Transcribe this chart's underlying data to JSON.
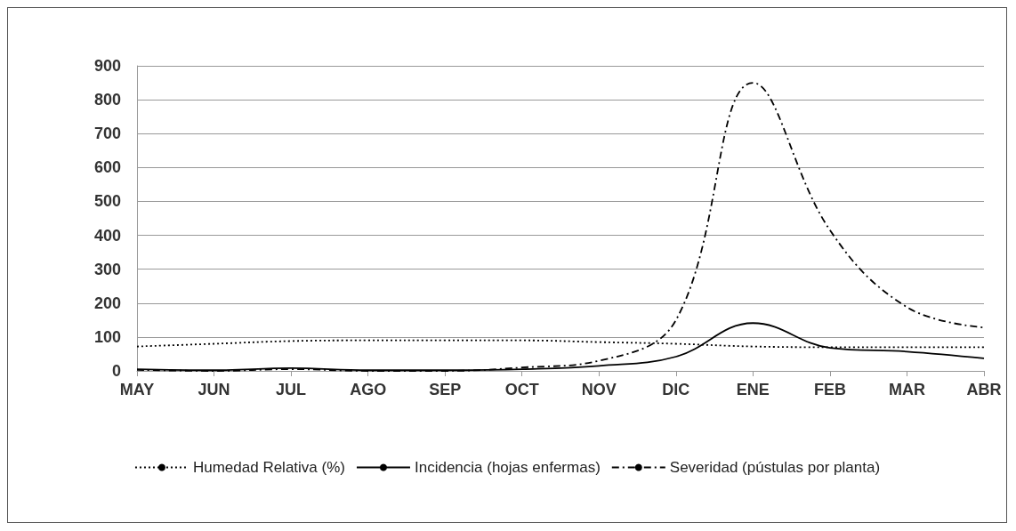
{
  "chart_data": {
    "type": "line",
    "categories": [
      "MAY",
      "JUN",
      "JUL",
      "AGO",
      "SEP",
      "OCT",
      "NOV",
      "DIC",
      "ENE",
      "FEB",
      "MAR",
      "ABR"
    ],
    "series": [
      {
        "name": "Humedad Relativa (%)",
        "color": "#000000",
        "line_style": "dotted",
        "values": [
          72,
          80,
          88,
          90,
          90,
          90,
          85,
          80,
          72,
          70,
          70,
          70
        ]
      },
      {
        "name": "Incidencia (hojas enfermas)",
        "color": "#000000",
        "line_style": "solid",
        "values": [
          5,
          2,
          8,
          2,
          2,
          5,
          15,
          42,
          141,
          68,
          57,
          37
        ]
      },
      {
        "name": "Severidad (pústulas por planta)",
        "color": "#000000",
        "line_style": "dashdot",
        "values": [
          3,
          0,
          5,
          0,
          0,
          10,
          30,
          150,
          850,
          415,
          188,
          128
        ]
      }
    ],
    "ylim": [
      0,
      900
    ],
    "yticks": [
      0,
      100,
      200,
      300,
      400,
      500,
      600,
      700,
      800,
      900
    ],
    "grid": "y",
    "legend": "bottom",
    "marker": "none"
  }
}
